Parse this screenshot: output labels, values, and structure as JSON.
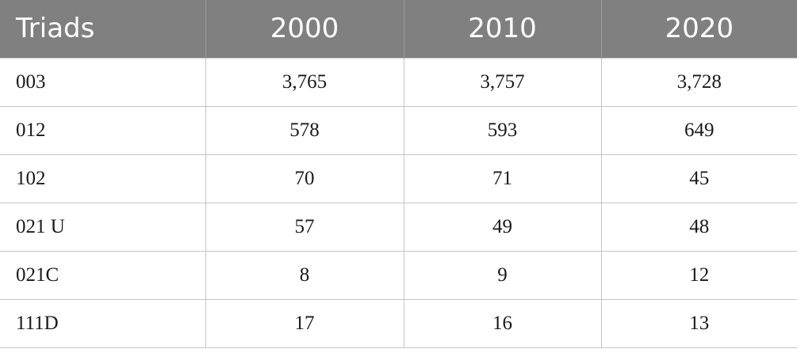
{
  "table": {
    "headers": [
      "Triads",
      "2000",
      "2010",
      "2020"
    ],
    "rows": [
      [
        "003",
        "3,765",
        "3,757",
        "3,728"
      ],
      [
        "012",
        "578",
        "593",
        "649"
      ],
      [
        "102",
        "70",
        "71",
        "45"
      ],
      [
        "021 U",
        "57",
        "49",
        "48"
      ],
      [
        "021C",
        "8",
        "9",
        "12"
      ],
      [
        "111D",
        "17",
        "16",
        "13"
      ]
    ]
  },
  "colors": {
    "header_bg": "#808080",
    "header_text": "#ffffff",
    "grid": "#c4c4c4"
  }
}
